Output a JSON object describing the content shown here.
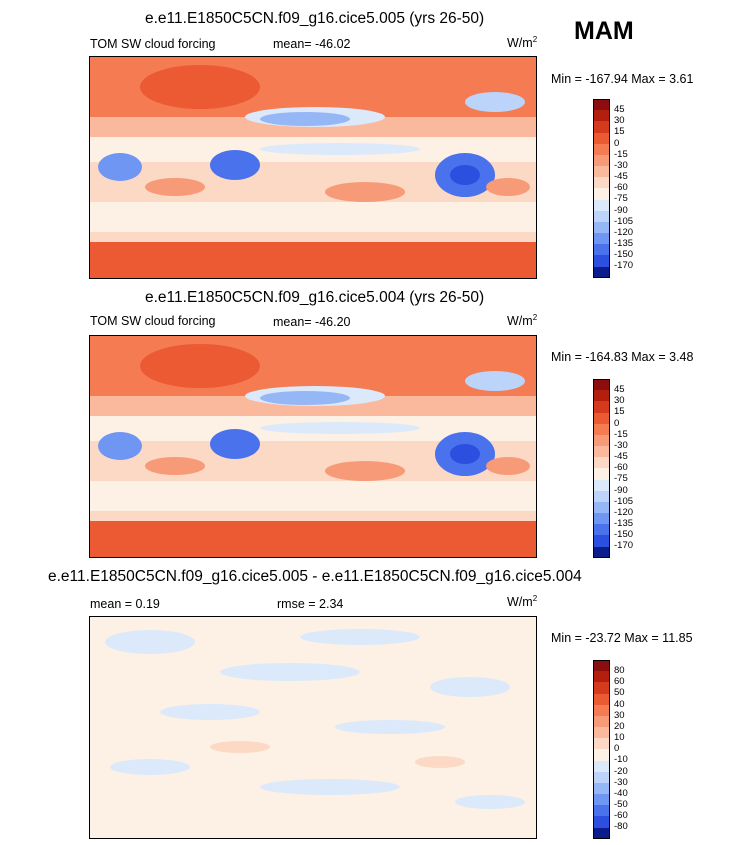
{
  "season": "MAM",
  "panels": [
    {
      "title": "e.e11.E1850C5CN.f09_g16.cice5.005 (yrs 26-50)",
      "left_label": "TOM SW cloud forcing",
      "center_label": "mean= -46.02",
      "units": "W/m",
      "units_sup": "2",
      "minmax_label": "Min = -167.94 Max =   3.61",
      "kind": "field"
    },
    {
      "title": "e.e11.E1850C5CN.f09_g16.cice5.004 (yrs 26-50)",
      "left_label": "TOM SW cloud forcing",
      "center_label": "mean= -46.20",
      "units": "W/m",
      "units_sup": "2",
      "minmax_label": "Min = -164.83 Max =   3.48",
      "kind": "field"
    },
    {
      "title": "e.e11.E1850C5CN.f09_g16.cice5.005 - e.e11.E1850C5CN.f09_g16.cice5.004",
      "left_label": "mean =   0.19",
      "center_label": "rmse =   2.34",
      "units": "W/m",
      "units_sup": "2",
      "minmax_label": "Min = -23.72 Max =  11.85",
      "kind": "diff"
    }
  ],
  "colorbar_field": {
    "labels": [
      "45",
      "30",
      "15",
      "0",
      "-15",
      "-30",
      "-45",
      "-60",
      "-75",
      "-90",
      "-105",
      "-120",
      "-135",
      "-150",
      "-170"
    ],
    "colors": [
      "#8c0d0d",
      "#b31e0f",
      "#d53a1f",
      "#ec5a33",
      "#f47b52",
      "#f79a77",
      "#fab89d",
      "#fcd9c4",
      "#fdf0e5",
      "#dce9fb",
      "#bcd3fa",
      "#96b7f6",
      "#6f96f2",
      "#4a72ec",
      "#2c4fe0",
      "#0b1d8c"
    ]
  },
  "colorbar_diff": {
    "labels": [
      "80",
      "60",
      "50",
      "40",
      "30",
      "20",
      "10",
      "0",
      "-10",
      "-20",
      "-30",
      "-40",
      "-50",
      "-60",
      "-80"
    ],
    "colors": [
      "#8c0d0d",
      "#b31e0f",
      "#d53a1f",
      "#ec5a33",
      "#f47b52",
      "#f79a77",
      "#fab89d",
      "#fcd9c4",
      "#fdf0e5",
      "#dce9fb",
      "#bcd3fa",
      "#96b7f6",
      "#6f96f2",
      "#4a72ec",
      "#2c4fe0",
      "#0b1d8c"
    ]
  }
}
